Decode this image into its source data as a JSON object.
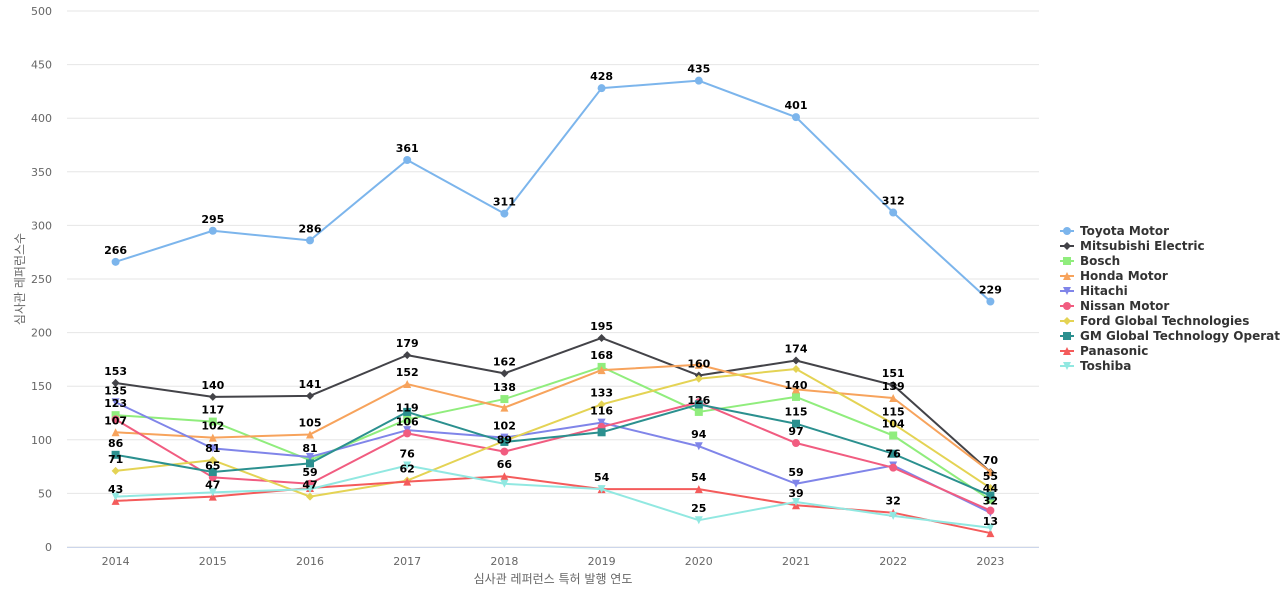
{
  "chart_data": {
    "type": "line",
    "xlabel": "심사관 레퍼런스 특허 발행 연도",
    "ylabel": "심사관 레퍼런스수",
    "x": [
      "2014",
      "2015",
      "2016",
      "2017",
      "2018",
      "2019",
      "2020",
      "2021",
      "2022",
      "2023"
    ],
    "ylim": [
      0,
      500
    ],
    "yticks": [
      0,
      50,
      100,
      150,
      200,
      250,
      300,
      350,
      400,
      450,
      500
    ],
    "grid": true,
    "legend_position": "right",
    "series": [
      {
        "name": "Toyota Motor",
        "color": "#7cb5ec",
        "marker": "circle",
        "values": [
          266,
          295,
          286,
          361,
          311,
          428,
          435,
          401,
          312,
          229
        ]
      },
      {
        "name": "Mitsubishi Electric",
        "color": "#434348",
        "marker": "diamond",
        "values": [
          153,
          140,
          141,
          179,
          162,
          195,
          160,
          174,
          151,
          70
        ]
      },
      {
        "name": "Bosch",
        "color": "#90ed7d",
        "marker": "square",
        "values": [
          123,
          117,
          81,
          119,
          138,
          168,
          126,
          140,
          104,
          44
        ]
      },
      {
        "name": "Honda Motor",
        "color": "#f7a35c",
        "marker": "triangle",
        "values": [
          107,
          102,
          105,
          152,
          130,
          165,
          170,
          147,
          139,
          70
        ]
      },
      {
        "name": "Hitachi",
        "color": "#8085e9",
        "marker": "triangle-down",
        "values": [
          135,
          92,
          84,
          109,
          102,
          116,
          94,
          59,
          76,
          32
        ]
      },
      {
        "name": "Nissan Motor",
        "color": "#f15c80",
        "marker": "circle",
        "values": [
          119,
          65,
          59,
          106,
          89,
          112,
          135,
          97,
          74,
          34
        ]
      },
      {
        "name": "Ford Global Technologies",
        "color": "#e4d354",
        "marker": "diamond",
        "values": [
          71,
          81,
          47,
          62,
          99,
          133,
          157,
          166,
          115,
          55
        ]
      },
      {
        "name": "GM Global Technology Operat...",
        "color": "#2b908f",
        "marker": "square",
        "values": [
          86,
          70,
          78,
          126,
          98,
          107,
          133,
          115,
          87,
          48
        ]
      },
      {
        "name": "Panasonic",
        "color": "#f45b5b",
        "marker": "triangle",
        "values": [
          43,
          47,
          55,
          61,
          66,
          54,
          54,
          39,
          32,
          13
        ]
      },
      {
        "name": "Toshiba",
        "color": "#91e8e1",
        "marker": "triangle-down",
        "values": [
          47,
          51,
          54,
          76,
          59,
          54,
          25,
          42,
          29,
          18
        ]
      }
    ],
    "data_labels": [
      {
        "x": "2014",
        "y": 266,
        "text": "266"
      },
      {
        "x": "2015",
        "y": 295,
        "text": "295"
      },
      {
        "x": "2016",
        "y": 286,
        "text": "286"
      },
      {
        "x": "2017",
        "y": 361,
        "text": "361"
      },
      {
        "x": "2018",
        "y": 311,
        "text": "311"
      },
      {
        "x": "2019",
        "y": 428,
        "text": "428"
      },
      {
        "x": "2020",
        "y": 435,
        "text": "435"
      },
      {
        "x": "2021",
        "y": 401,
        "text": "401"
      },
      {
        "x": "2022",
        "y": 312,
        "text": "312"
      },
      {
        "x": "2023",
        "y": 229,
        "text": "229"
      },
      {
        "x": "2014",
        "y": 153,
        "text": "153"
      },
      {
        "x": "2015",
        "y": 140,
        "text": "140"
      },
      {
        "x": "2016",
        "y": 141,
        "text": "141"
      },
      {
        "x": "2017",
        "y": 179,
        "text": "179"
      },
      {
        "x": "2018",
        "y": 162,
        "text": "162"
      },
      {
        "x": "2019",
        "y": 195,
        "text": "195"
      },
      {
        "x": "2020",
        "y": 160,
        "text": "160"
      },
      {
        "x": "2021",
        "y": 174,
        "text": "174"
      },
      {
        "x": "2022",
        "y": 151,
        "text": "151"
      },
      {
        "x": "2023",
        "y": 70,
        "text": "70"
      },
      {
        "x": "2014",
        "y": 135,
        "text": "135"
      },
      {
        "x": "2014",
        "y": 123,
        "text": "123"
      },
      {
        "x": "2014",
        "y": 107,
        "text": "107"
      },
      {
        "x": "2014",
        "y": 86,
        "text": "86"
      },
      {
        "x": "2014",
        "y": 71,
        "text": "71"
      },
      {
        "x": "2014",
        "y": 43,
        "text": "43"
      },
      {
        "x": "2015",
        "y": 117,
        "text": "117"
      },
      {
        "x": "2015",
        "y": 102,
        "text": "102"
      },
      {
        "x": "2015",
        "y": 81,
        "text": "81"
      },
      {
        "x": "2015",
        "y": 65,
        "text": "65"
      },
      {
        "x": "2015",
        "y": 47,
        "text": "47"
      },
      {
        "x": "2016",
        "y": 105,
        "text": "105"
      },
      {
        "x": "2016",
        "y": 81,
        "text": "81"
      },
      {
        "x": "2016",
        "y": 59,
        "text": "59"
      },
      {
        "x": "2016",
        "y": 47,
        "text": "47"
      },
      {
        "x": "2017",
        "y": 152,
        "text": "152"
      },
      {
        "x": "2017",
        "y": 119,
        "text": "119"
      },
      {
        "x": "2017",
        "y": 106,
        "text": "106"
      },
      {
        "x": "2017",
        "y": 76,
        "text": "76"
      },
      {
        "x": "2017",
        "y": 62,
        "text": "62"
      },
      {
        "x": "2018",
        "y": 138,
        "text": "138"
      },
      {
        "x": "2018",
        "y": 102,
        "text": "102"
      },
      {
        "x": "2018",
        "y": 89,
        "text": "89"
      },
      {
        "x": "2018",
        "y": 66,
        "text": "66"
      },
      {
        "x": "2019",
        "y": 168,
        "text": "168"
      },
      {
        "x": "2019",
        "y": 133,
        "text": "133"
      },
      {
        "x": "2019",
        "y": 116,
        "text": "116"
      },
      {
        "x": "2019",
        "y": 54,
        "text": "54"
      },
      {
        "x": "2020",
        "y": 126,
        "text": "126"
      },
      {
        "x": "2020",
        "y": 94,
        "text": "94"
      },
      {
        "x": "2020",
        "y": 54,
        "text": "54"
      },
      {
        "x": "2020",
        "y": 25,
        "text": "25"
      },
      {
        "x": "2021",
        "y": 140,
        "text": "140"
      },
      {
        "x": "2021",
        "y": 115,
        "text": "115"
      },
      {
        "x": "2021",
        "y": 97,
        "text": "97"
      },
      {
        "x": "2021",
        "y": 59,
        "text": "59"
      },
      {
        "x": "2021",
        "y": 39,
        "text": "39"
      },
      {
        "x": "2022",
        "y": 139,
        "text": "139"
      },
      {
        "x": "2022",
        "y": 115,
        "text": "115"
      },
      {
        "x": "2022",
        "y": 104,
        "text": "104"
      },
      {
        "x": "2022",
        "y": 76,
        "text": "76"
      },
      {
        "x": "2022",
        "y": 32,
        "text": "32"
      },
      {
        "x": "2023",
        "y": 55,
        "text": "55"
      },
      {
        "x": "2023",
        "y": 44,
        "text": "44"
      },
      {
        "x": "2023",
        "y": 32,
        "text": "32"
      },
      {
        "x": "2023",
        "y": 13,
        "text": "13"
      }
    ]
  }
}
